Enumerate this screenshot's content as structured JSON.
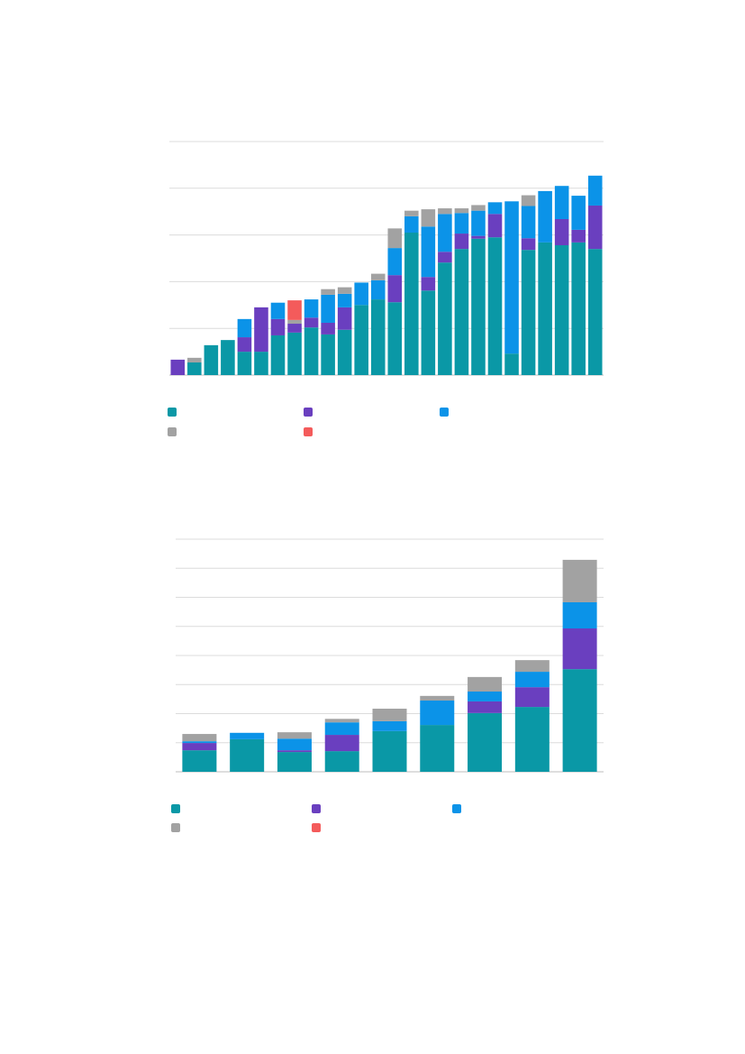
{
  "chart_data": [
    {
      "type": "stacked_bar",
      "categories": [
        null,
        null,
        null,
        null,
        null,
        null,
        null,
        null,
        null,
        null,
        null,
        null,
        null,
        null,
        null,
        null,
        null,
        null,
        null,
        null,
        null,
        null,
        null,
        null,
        null,
        null
      ],
      "ylim": [
        0,
        5
      ],
      "yticks": [
        0,
        1,
        2,
        3,
        4,
        5
      ],
      "grid": true,
      "series": [
        {
          "color": "#0a98a6",
          "values": [
            0,
            0.27,
            0.64,
            0.75,
            0.5,
            0.5,
            0.85,
            0.91,
            1.02,
            0.87,
            0.97,
            1.5,
            1.62,
            1.56,
            3.05,
            1.81,
            2.41,
            2.7,
            2.92,
            2.95,
            0.46,
            2.68,
            2.84,
            2.78,
            2.84,
            2.7
          ]
        },
        {
          "color": "#6a3fbf",
          "values": [
            0.33,
            0,
            0,
            0,
            0.31,
            0.95,
            0.35,
            0.19,
            0.21,
            0.25,
            0.48,
            0,
            0,
            0.58,
            0,
            0.29,
            0.23,
            0.33,
            0.06,
            0.5,
            0,
            0.25,
            0,
            0.56,
            0.27,
            0.93
          ]
        },
        {
          "color": "#0b93e8",
          "values": [
            0,
            0,
            0,
            0,
            0.39,
            0,
            0.35,
            0,
            0.39,
            0.6,
            0.29,
            0.48,
            0.41,
            0.58,
            0.35,
            1.08,
            0.81,
            0.44,
            0.54,
            0.25,
            3.26,
            0.69,
            1.1,
            0.71,
            0.73,
            0.64
          ]
        },
        {
          "color": "#a2a2a2",
          "values": [
            0,
            0.1,
            0,
            0,
            0,
            0,
            0,
            0.08,
            0,
            0.12,
            0.14,
            0,
            0.14,
            0.42,
            0.12,
            0.37,
            0.12,
            0.1,
            0.12,
            0,
            0,
            0.23,
            0,
            0,
            0,
            0
          ]
        },
        {
          "color": "#f45b5b",
          "values": [
            0,
            0,
            0,
            0,
            0,
            0,
            0,
            0.42,
            0,
            0,
            0,
            0,
            0,
            0,
            0,
            0,
            0,
            0,
            0,
            0,
            0,
            0,
            0,
            0,
            0,
            0
          ]
        }
      ]
    },
    {
      "type": "stacked_bar",
      "categories": [
        null,
        null,
        null,
        null,
        null,
        null,
        null,
        null,
        null
      ],
      "ylim": [
        0,
        8
      ],
      "yticks": [
        0,
        1,
        2,
        3,
        4,
        5,
        6,
        7,
        8
      ],
      "grid": true,
      "series": [
        {
          "color": "#0a98a6",
          "values": [
            0.74,
            1.12,
            0.68,
            0.71,
            1.4,
            1.61,
            2.02,
            2.23,
            3.53
          ]
        },
        {
          "color": "#6a3fbf",
          "values": [
            0.25,
            0,
            0.06,
            0.56,
            0,
            0,
            0.4,
            0.68,
            1.4
          ]
        },
        {
          "color": "#0b93e8",
          "values": [
            0.06,
            0.22,
            0.4,
            0.43,
            0.34,
            0.84,
            0.34,
            0.53,
            0.9
          ]
        },
        {
          "color": "#a2a2a2",
          "values": [
            0.25,
            0,
            0.22,
            0.12,
            0.43,
            0.16,
            0.5,
            0.4,
            1.46
          ]
        },
        {
          "color": "#f45b5b",
          "values": [
            0,
            0,
            0,
            0,
            0,
            0,
            0,
            0,
            0
          ]
        }
      ]
    }
  ]
}
